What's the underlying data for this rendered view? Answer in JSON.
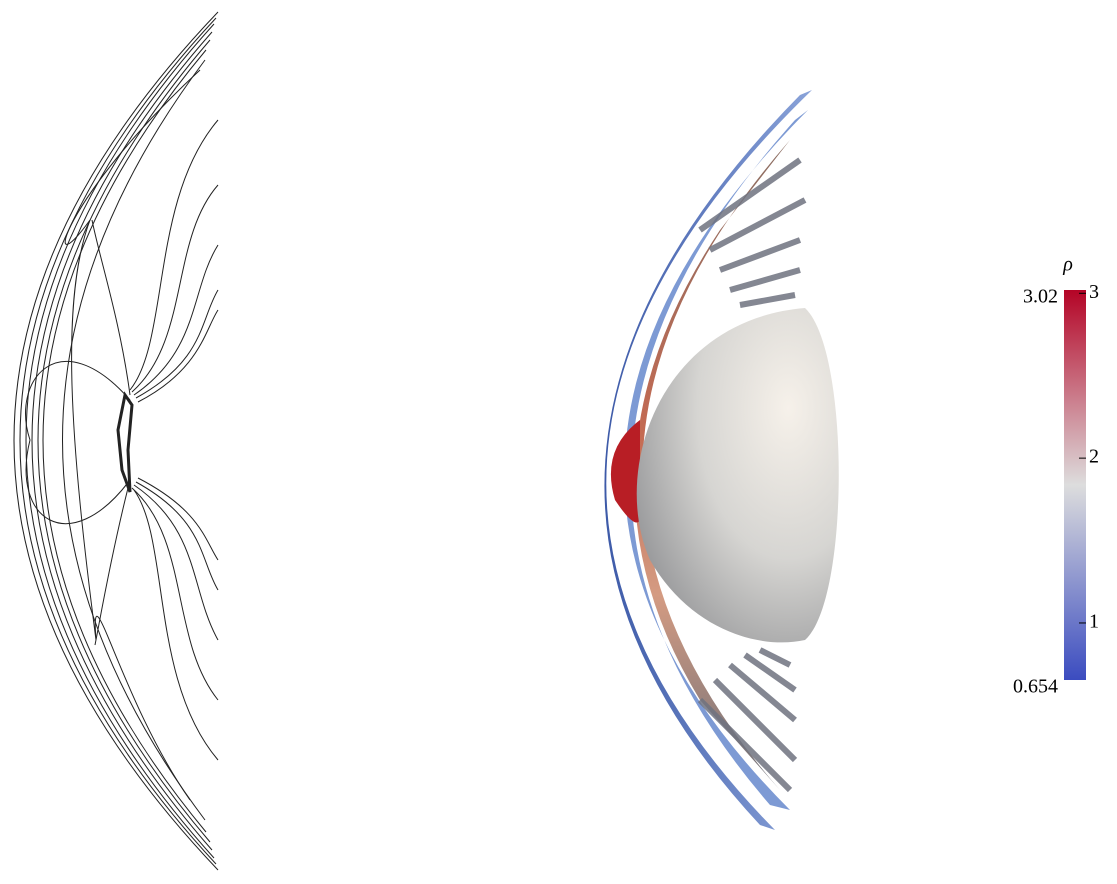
{
  "colorbar": {
    "label": "ρ",
    "range": [
      0.654,
      3.02
    ],
    "ticks": [
      1,
      2,
      3
    ],
    "colors": [
      "#3b4cc0",
      "#dddddd",
      "#b40426"
    ]
  }
}
